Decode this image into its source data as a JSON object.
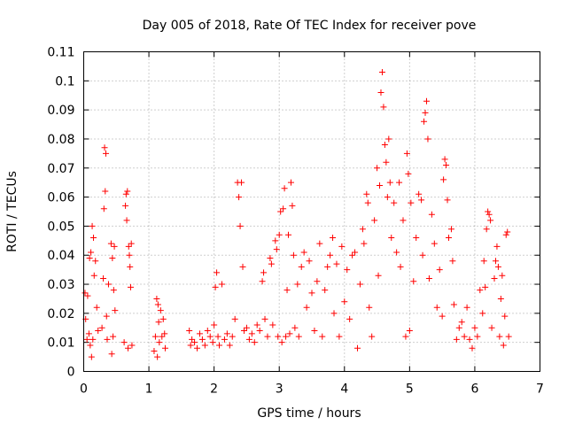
{
  "chart_data": {
    "type": "scatter",
    "title": "Day 005 of 2018, Rate Of TEC Index for receiver pove",
    "xlabel": "GPS time / hours",
    "ylabel": "ROTI / TECUs",
    "xlim": [
      0,
      7
    ],
    "ylim": [
      0,
      0.11
    ],
    "x_ticks": [
      {
        "value": 0,
        "label": "0"
      },
      {
        "value": 1,
        "label": "1"
      },
      {
        "value": 2,
        "label": "2"
      },
      {
        "value": 3,
        "label": "3"
      },
      {
        "value": 4,
        "label": "4"
      },
      {
        "value": 5,
        "label": "5"
      },
      {
        "value": 6,
        "label": "6"
      },
      {
        "value": 7,
        "label": "7"
      }
    ],
    "y_ticks": [
      {
        "value": 0,
        "label": "0"
      },
      {
        "value": 0.01,
        "label": "0.01"
      },
      {
        "value": 0.02,
        "label": "0.02"
      },
      {
        "value": 0.03,
        "label": "0.03"
      },
      {
        "value": 0.04,
        "label": "0.04"
      },
      {
        "value": 0.05,
        "label": "0.05"
      },
      {
        "value": 0.06,
        "label": "0.06"
      },
      {
        "value": 0.07,
        "label": "0.07"
      },
      {
        "value": 0.08,
        "label": "0.08"
      },
      {
        "value": 0.09,
        "label": "0.09"
      },
      {
        "value": 0.1,
        "label": "0.1"
      },
      {
        "value": 0.11,
        "label": "0.11"
      }
    ],
    "grid": true,
    "marker": "+",
    "color": "#ff0000",
    "series": [
      {
        "name": "ROTI",
        "points": [
          [
            0.02,
            0.027
          ],
          [
            0.03,
            0.018
          ],
          [
            0.05,
            0.011
          ],
          [
            0.06,
            0.026
          ],
          [
            0.08,
            0.013
          ],
          [
            0.09,
            0.039
          ],
          [
            0.1,
            0.009
          ],
          [
            0.11,
            0.041
          ],
          [
            0.12,
            0.005
          ],
          [
            0.13,
            0.05
          ],
          [
            0.14,
            0.011
          ],
          [
            0.15,
            0.046
          ],
          [
            0.16,
            0.033
          ],
          [
            0.18,
            0.038
          ],
          [
            0.2,
            0.022
          ],
          [
            0.22,
            0.014
          ],
          [
            0.28,
            0.015
          ],
          [
            0.3,
            0.032
          ],
          [
            0.31,
            0.056
          ],
          [
            0.32,
            0.077
          ],
          [
            0.33,
            0.062
          ],
          [
            0.34,
            0.075
          ],
          [
            0.35,
            0.019
          ],
          [
            0.36,
            0.011
          ],
          [
            0.38,
            0.03
          ],
          [
            0.42,
            0.044
          ],
          [
            0.43,
            0.006
          ],
          [
            0.44,
            0.039
          ],
          [
            0.45,
            0.012
          ],
          [
            0.46,
            0.028
          ],
          [
            0.47,
            0.043
          ],
          [
            0.48,
            0.021
          ],
          [
            0.62,
            0.01
          ],
          [
            0.64,
            0.057
          ],
          [
            0.65,
            0.061
          ],
          [
            0.66,
            0.052
          ],
          [
            0.67,
            0.062
          ],
          [
            0.68,
            0.008
          ],
          [
            0.69,
            0.043
          ],
          [
            0.7,
            0.04
          ],
          [
            0.71,
            0.036
          ],
          [
            0.72,
            0.029
          ],
          [
            0.73,
            0.044
          ],
          [
            0.74,
            0.009
          ],
          [
            1.08,
            0.007
          ],
          [
            1.1,
            0.012
          ],
          [
            1.12,
            0.025
          ],
          [
            1.13,
            0.005
          ],
          [
            1.14,
            0.023
          ],
          [
            1.15,
            0.017
          ],
          [
            1.16,
            0.01
          ],
          [
            1.18,
            0.021
          ],
          [
            1.2,
            0.012
          ],
          [
            1.22,
            0.018
          ],
          [
            1.24,
            0.013
          ],
          [
            1.25,
            0.008
          ],
          [
            1.62,
            0.014
          ],
          [
            1.64,
            0.009
          ],
          [
            1.66,
            0.011
          ],
          [
            1.7,
            0.01
          ],
          [
            1.74,
            0.008
          ],
          [
            1.78,
            0.013
          ],
          [
            1.82,
            0.011
          ],
          [
            1.86,
            0.009
          ],
          [
            1.9,
            0.014
          ],
          [
            1.94,
            0.012
          ],
          [
            1.98,
            0.01
          ],
          [
            2.0,
            0.016
          ],
          [
            2.02,
            0.029
          ],
          [
            2.04,
            0.034
          ],
          [
            2.06,
            0.012
          ],
          [
            2.08,
            0.009
          ],
          [
            2.12,
            0.03
          ],
          [
            2.16,
            0.011
          ],
          [
            2.2,
            0.013
          ],
          [
            2.24,
            0.009
          ],
          [
            2.28,
            0.012
          ],
          [
            2.32,
            0.018
          ],
          [
            2.36,
            0.065
          ],
          [
            2.38,
            0.06
          ],
          [
            2.4,
            0.05
          ],
          [
            2.42,
            0.065
          ],
          [
            2.44,
            0.036
          ],
          [
            2.46,
            0.014
          ],
          [
            2.5,
            0.015
          ],
          [
            2.54,
            0.011
          ],
          [
            2.58,
            0.013
          ],
          [
            2.62,
            0.01
          ],
          [
            2.66,
            0.016
          ],
          [
            2.7,
            0.014
          ],
          [
            2.74,
            0.031
          ],
          [
            2.76,
            0.034
          ],
          [
            2.78,
            0.018
          ],
          [
            2.82,
            0.012
          ],
          [
            2.86,
            0.039
          ],
          [
            2.88,
            0.037
          ],
          [
            2.9,
            0.016
          ],
          [
            2.94,
            0.045
          ],
          [
            2.96,
            0.042
          ],
          [
            2.98,
            0.012
          ],
          [
            3.0,
            0.047
          ],
          [
            3.02,
            0.055
          ],
          [
            3.04,
            0.01
          ],
          [
            3.06,
            0.056
          ],
          [
            3.08,
            0.063
          ],
          [
            3.1,
            0.012
          ],
          [
            3.12,
            0.028
          ],
          [
            3.14,
            0.047
          ],
          [
            3.16,
            0.013
          ],
          [
            3.18,
            0.065
          ],
          [
            3.2,
            0.057
          ],
          [
            3.22,
            0.04
          ],
          [
            3.24,
            0.015
          ],
          [
            3.28,
            0.03
          ],
          [
            3.3,
            0.012
          ],
          [
            3.34,
            0.036
          ],
          [
            3.38,
            0.041
          ],
          [
            3.42,
            0.022
          ],
          [
            3.46,
            0.038
          ],
          [
            3.5,
            0.027
          ],
          [
            3.54,
            0.014
          ],
          [
            3.58,
            0.031
          ],
          [
            3.62,
            0.044
          ],
          [
            3.66,
            0.012
          ],
          [
            3.7,
            0.028
          ],
          [
            3.74,
            0.036
          ],
          [
            3.78,
            0.04
          ],
          [
            3.82,
            0.046
          ],
          [
            3.84,
            0.02
          ],
          [
            3.88,
            0.037
          ],
          [
            3.92,
            0.012
          ],
          [
            3.96,
            0.043
          ],
          [
            4.0,
            0.024
          ],
          [
            4.04,
            0.035
          ],
          [
            4.08,
            0.018
          ],
          [
            4.12,
            0.04
          ],
          [
            4.16,
            0.041
          ],
          [
            4.2,
            0.008
          ],
          [
            4.24,
            0.03
          ],
          [
            4.28,
            0.049
          ],
          [
            4.3,
            0.044
          ],
          [
            4.34,
            0.061
          ],
          [
            4.36,
            0.058
          ],
          [
            4.38,
            0.022
          ],
          [
            4.42,
            0.012
          ],
          [
            4.46,
            0.052
          ],
          [
            4.5,
            0.07
          ],
          [
            4.52,
            0.033
          ],
          [
            4.54,
            0.064
          ],
          [
            4.56,
            0.096
          ],
          [
            4.58,
            0.103
          ],
          [
            4.6,
            0.091
          ],
          [
            4.62,
            0.078
          ],
          [
            4.64,
            0.072
          ],
          [
            4.66,
            0.06
          ],
          [
            4.68,
            0.08
          ],
          [
            4.7,
            0.065
          ],
          [
            4.72,
            0.046
          ],
          [
            4.76,
            0.058
          ],
          [
            4.8,
            0.041
          ],
          [
            4.84,
            0.065
          ],
          [
            4.86,
            0.036
          ],
          [
            4.9,
            0.052
          ],
          [
            4.94,
            0.012
          ],
          [
            4.96,
            0.075
          ],
          [
            4.98,
            0.068
          ],
          [
            5.0,
            0.014
          ],
          [
            5.02,
            0.058
          ],
          [
            5.06,
            0.031
          ],
          [
            5.1,
            0.046
          ],
          [
            5.14,
            0.061
          ],
          [
            5.18,
            0.059
          ],
          [
            5.2,
            0.04
          ],
          [
            5.22,
            0.086
          ],
          [
            5.24,
            0.089
          ],
          [
            5.26,
            0.093
          ],
          [
            5.28,
            0.08
          ],
          [
            5.3,
            0.032
          ],
          [
            5.34,
            0.054
          ],
          [
            5.38,
            0.044
          ],
          [
            5.42,
            0.022
          ],
          [
            5.46,
            0.035
          ],
          [
            5.5,
            0.019
          ],
          [
            5.52,
            0.066
          ],
          [
            5.54,
            0.073
          ],
          [
            5.56,
            0.071
          ],
          [
            5.58,
            0.059
          ],
          [
            5.6,
            0.046
          ],
          [
            5.64,
            0.049
          ],
          [
            5.66,
            0.038
          ],
          [
            5.68,
            0.023
          ],
          [
            5.72,
            0.011
          ],
          [
            5.76,
            0.015
          ],
          [
            5.8,
            0.017
          ],
          [
            5.84,
            0.012
          ],
          [
            5.88,
            0.022
          ],
          [
            5.92,
            0.011
          ],
          [
            5.96,
            0.008
          ],
          [
            6.0,
            0.015
          ],
          [
            6.04,
            0.012
          ],
          [
            6.08,
            0.028
          ],
          [
            6.12,
            0.02
          ],
          [
            6.14,
            0.038
          ],
          [
            6.16,
            0.029
          ],
          [
            6.18,
            0.049
          ],
          [
            6.2,
            0.055
          ],
          [
            6.22,
            0.054
          ],
          [
            6.24,
            0.052
          ],
          [
            6.26,
            0.015
          ],
          [
            6.3,
            0.032
          ],
          [
            6.32,
            0.038
          ],
          [
            6.34,
            0.043
          ],
          [
            6.36,
            0.036
          ],
          [
            6.38,
            0.012
          ],
          [
            6.4,
            0.025
          ],
          [
            6.42,
            0.033
          ],
          [
            6.44,
            0.009
          ],
          [
            6.46,
            0.019
          ],
          [
            6.48,
            0.047
          ],
          [
            6.5,
            0.048
          ],
          [
            6.52,
            0.012
          ]
        ]
      }
    ]
  }
}
